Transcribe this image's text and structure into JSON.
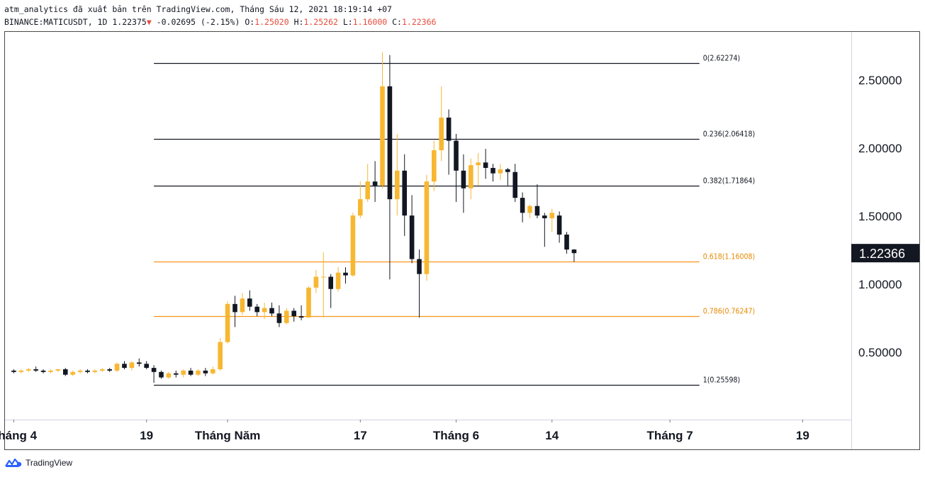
{
  "header": {
    "line1": "atm_analytics đã xuất bản trên TradingView.com, Tháng Sáu 12, 2021 18:19:14 +07",
    "symbol": "BINANCE:MATICUSDT, 1D",
    "last": "1.22375",
    "arrow": "▼",
    "change": "-0.02695 (-2.15%)",
    "o_label": "O:",
    "o_value": "1.25020",
    "h_label": "H:",
    "h_value": "1.25262",
    "l_label": "L:",
    "l_value": "1.16000",
    "c_label": "C:",
    "c_value": "1.22366"
  },
  "footer": {
    "brand": "TradingView"
  },
  "colors": {
    "up": "#f7b731",
    "down": "#131722",
    "fib_gray": "#131722",
    "fib_orange": "#f7931a",
    "price_label_bg": "#131722",
    "price_label_text": "#ffffff",
    "header_red": "#e74c3c"
  },
  "chart_data": {
    "type": "candlestick",
    "title": "",
    "xlabel": "",
    "ylabel": "",
    "ylim": [
      0.0,
      2.85
    ],
    "y_ticks": [
      "0.50000",
      "1.00000",
      "1.50000",
      "2.00000",
      "2.50000"
    ],
    "y_tick_values": [
      0.5,
      1.0,
      1.5,
      2.0,
      2.5
    ],
    "x_tick_labels": [
      "Tháng 4",
      "19",
      "Tháng Năm",
      "17",
      "Tháng 6",
      "14",
      "Tháng 7",
      "19"
    ],
    "x_tick_days": [
      0,
      18,
      29,
      47,
      60,
      73,
      89,
      107
    ],
    "x_range_days": [
      -1.2,
      113.6
    ],
    "last_price_label": "1.22366",
    "fib_levels": [
      {
        "label": "0(2.62274)",
        "value": 2.62274,
        "color": "gray"
      },
      {
        "label": "0.236(2.06418)",
        "value": 2.06418,
        "color": "gray"
      },
      {
        "label": "0.382(1.71864)",
        "value": 1.71864,
        "color": "gray"
      },
      {
        "label": "0.618(1.16008)",
        "value": 1.16008,
        "color": "orange"
      },
      {
        "label": "0.786(0.76247)",
        "value": 0.76247,
        "color": "orange"
      },
      {
        "label": "1(0.25598)",
        "value": 0.25598,
        "color": "gray"
      }
    ],
    "fib_x_days": [
      19,
      93
    ],
    "candles": [
      [
        0.36,
        0.37,
        0.34,
        0.35
      ],
      [
        0.35,
        0.37,
        0.34,
        0.36
      ],
      [
        0.36,
        0.38,
        0.35,
        0.37
      ],
      [
        0.37,
        0.39,
        0.35,
        0.36
      ],
      [
        0.36,
        0.37,
        0.34,
        0.35
      ],
      [
        0.35,
        0.37,
        0.34,
        0.36
      ],
      [
        0.36,
        0.37,
        0.35,
        0.37
      ],
      [
        0.37,
        0.38,
        0.32,
        0.33
      ],
      [
        0.33,
        0.36,
        0.32,
        0.35
      ],
      [
        0.35,
        0.37,
        0.34,
        0.36
      ],
      [
        0.36,
        0.37,
        0.34,
        0.35
      ],
      [
        0.35,
        0.37,
        0.34,
        0.36
      ],
      [
        0.36,
        0.38,
        0.35,
        0.37
      ],
      [
        0.37,
        0.38,
        0.35,
        0.36
      ],
      [
        0.36,
        0.42,
        0.35,
        0.41
      ],
      [
        0.41,
        0.43,
        0.37,
        0.38
      ],
      [
        0.38,
        0.43,
        0.36,
        0.42
      ],
      [
        0.42,
        0.45,
        0.39,
        0.41
      ],
      [
        0.41,
        0.43,
        0.37,
        0.38
      ],
      [
        0.38,
        0.4,
        0.27,
        0.35
      ],
      [
        0.35,
        0.36,
        0.3,
        0.31
      ],
      [
        0.31,
        0.35,
        0.3,
        0.34
      ],
      [
        0.34,
        0.36,
        0.31,
        0.33
      ],
      [
        0.33,
        0.37,
        0.31,
        0.36
      ],
      [
        0.36,
        0.38,
        0.32,
        0.33
      ],
      [
        0.33,
        0.37,
        0.32,
        0.36
      ],
      [
        0.36,
        0.38,
        0.32,
        0.34
      ],
      [
        0.34,
        0.39,
        0.33,
        0.37
      ],
      [
        0.37,
        0.6,
        0.36,
        0.57
      ],
      [
        0.57,
        0.87,
        0.56,
        0.85
      ],
      [
        0.85,
        0.91,
        0.68,
        0.79
      ],
      [
        0.79,
        0.93,
        0.77,
        0.89
      ],
      [
        0.89,
        0.95,
        0.8,
        0.83
      ],
      [
        0.83,
        0.85,
        0.76,
        0.79
      ],
      [
        0.79,
        0.86,
        0.74,
        0.82
      ],
      [
        0.82,
        0.86,
        0.76,
        0.78
      ],
      [
        0.78,
        0.84,
        0.68,
        0.71
      ],
      [
        0.71,
        0.82,
        0.7,
        0.8
      ],
      [
        0.8,
        0.82,
        0.72,
        0.76
      ],
      [
        0.76,
        0.84,
        0.73,
        0.75
      ],
      [
        0.75,
        0.98,
        0.75,
        0.97
      ],
      [
        0.97,
        1.1,
        0.93,
        1.05
      ],
      [
        1.05,
        1.23,
        0.75,
        1.05
      ],
      [
        1.05,
        1.07,
        0.82,
        0.96
      ],
      [
        0.96,
        1.12,
        0.94,
        1.08
      ],
      [
        1.08,
        1.12,
        1.0,
        1.06
      ],
      [
        1.06,
        1.52,
        1.05,
        1.5
      ],
      [
        1.5,
        1.75,
        1.48,
        1.62
      ],
      [
        1.62,
        1.88,
        1.6,
        1.75
      ],
      [
        1.75,
        1.9,
        1.6,
        1.72
      ],
      [
        1.72,
        2.7,
        1.7,
        2.45
      ],
      [
        2.45,
        2.68,
        1.03,
        1.62
      ],
      [
        1.62,
        2.1,
        1.5,
        1.83
      ],
      [
        1.83,
        1.95,
        1.35,
        1.5
      ],
      [
        1.5,
        1.65,
        1.15,
        1.18
      ],
      [
        1.18,
        1.25,
        0.75,
        1.07
      ],
      [
        1.07,
        1.8,
        1.02,
        1.75
      ],
      [
        1.75,
        2.05,
        1.68,
        1.98
      ],
      [
        1.98,
        2.45,
        1.9,
        2.22
      ],
      [
        2.22,
        2.28,
        1.8,
        2.05
      ],
      [
        2.05,
        2.1,
        1.6,
        1.83
      ],
      [
        1.83,
        1.95,
        1.52,
        1.7
      ],
      [
        1.7,
        1.92,
        1.62,
        1.87
      ],
      [
        1.87,
        1.96,
        1.72,
        1.89
      ],
      [
        1.89,
        1.99,
        1.77,
        1.85
      ],
      [
        1.85,
        1.88,
        1.75,
        1.81
      ],
      [
        1.81,
        1.88,
        1.76,
        1.84
      ],
      [
        1.84,
        1.85,
        1.72,
        1.82
      ],
      [
        1.82,
        1.88,
        1.6,
        1.63
      ],
      [
        1.63,
        1.67,
        1.45,
        1.52
      ],
      [
        1.52,
        1.58,
        1.48,
        1.57
      ],
      [
        1.57,
        1.73,
        1.48,
        1.5
      ],
      [
        1.5,
        1.52,
        1.27,
        1.48
      ],
      [
        1.48,
        1.55,
        1.38,
        1.52
      ],
      [
        1.5,
        1.53,
        1.3,
        1.36
      ],
      [
        1.36,
        1.38,
        1.22,
        1.25
      ],
      [
        1.2502,
        1.25262,
        1.16,
        1.22366
      ]
    ]
  }
}
